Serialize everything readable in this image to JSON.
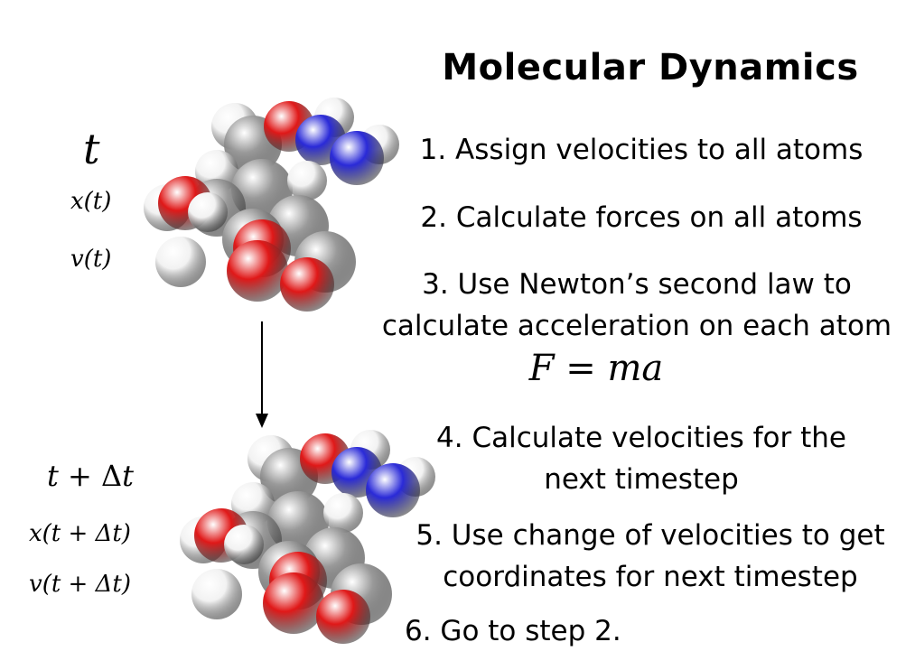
{
  "title": "Molecular Dynamics",
  "steps": [
    "1. Assign velocities to all atoms",
    "2. Calculate forces on all atoms",
    "3. Use Newton’s second law to calculate acceleration on each atom",
    "4. Calculate velocities for the next timestep",
    "5. Use change of velocities to get coordinates for next timestep",
    "6. Go to step 2."
  ],
  "step_lines": {
    "s1": "1. Assign velocities to all atoms",
    "s2": "2. Calculate forces on all atoms",
    "s3a": "3. Use Newton’s second law to",
    "s3b": "calculate acceleration on each atom",
    "s4a": "4. Calculate velocities for the",
    "s4b": "next timestep",
    "s5a": "5. Use change of velocities to get",
    "s5b": "coordinates for next timestep",
    "s6": "6. Go to step 2."
  },
  "equation": {
    "lhs": "F",
    "eq": "=",
    "rhs": "ma"
  },
  "state_t": {
    "time": "t",
    "position": "x(t)",
    "velocity": "v(t)"
  },
  "state_next": {
    "time_t": "t",
    "plus": "+",
    "delta": "Δ",
    "time_t2": "t",
    "position": "x(t + Δt)",
    "velocity": "v(t + Δt)"
  },
  "colors": {
    "oxygen": "#e01818",
    "nitrogen": "#2a2ad8",
    "carbon": "#9a9a9a",
    "hydrogen": "#f2f2f2"
  }
}
